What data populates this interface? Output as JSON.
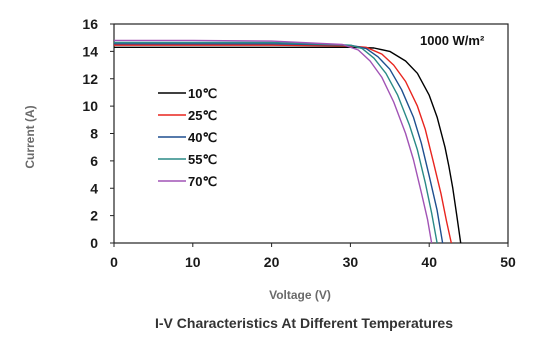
{
  "chart_data": {
    "type": "line",
    "title": "I-V Characteristics At Different Temperatures",
    "xlabel": "Voltage  (V)",
    "ylabel": "Current (A)",
    "xlim": [
      0,
      50
    ],
    "ylim": [
      0,
      16
    ],
    "xticks": [
      "0",
      "10",
      "20",
      "30",
      "40",
      "50"
    ],
    "yticks": [
      "0",
      "2",
      "4",
      "6",
      "8",
      "10",
      "12",
      "14",
      "16"
    ],
    "annotation": "1000 W/m²",
    "grid": false,
    "legend_position": "left-center",
    "series": [
      {
        "name": "10℃",
        "color": "#000000",
        "points": [
          [
            0,
            14.3
          ],
          [
            10,
            14.3
          ],
          [
            20,
            14.3
          ],
          [
            30,
            14.3
          ],
          [
            33,
            14.25
          ],
          [
            35,
            14.0
          ],
          [
            37,
            13.3
          ],
          [
            38.5,
            12.4
          ],
          [
            40,
            10.8
          ],
          [
            41,
            9.2
          ],
          [
            42,
            7.0
          ],
          [
            42.5,
            5.6
          ],
          [
            43,
            4.0
          ],
          [
            43.5,
            2.0
          ],
          [
            44,
            0
          ]
        ]
      },
      {
        "name": "25℃",
        "color": "#e8251f",
        "points": [
          [
            0,
            14.45
          ],
          [
            10,
            14.45
          ],
          [
            20,
            14.45
          ],
          [
            30,
            14.4
          ],
          [
            32,
            14.3
          ],
          [
            34,
            13.8
          ],
          [
            35.5,
            13.0
          ],
          [
            37,
            11.8
          ],
          [
            38.5,
            10.0
          ],
          [
            39.5,
            8.3
          ],
          [
            40.5,
            6.0
          ],
          [
            41.5,
            3.6
          ],
          [
            42.2,
            1.6
          ],
          [
            42.8,
            0
          ]
        ]
      },
      {
        "name": "40℃",
        "color": "#1f4f8f",
        "points": [
          [
            0,
            14.55
          ],
          [
            10,
            14.55
          ],
          [
            20,
            14.55
          ],
          [
            30,
            14.45
          ],
          [
            32,
            14.2
          ],
          [
            33.5,
            13.6
          ],
          [
            35,
            12.7
          ],
          [
            36.5,
            11.2
          ],
          [
            38,
            9.2
          ],
          [
            39,
            7.3
          ],
          [
            40,
            4.9
          ],
          [
            41,
            2.4
          ],
          [
            41.7,
            0
          ]
        ]
      },
      {
        "name": "55℃",
        "color": "#2a8a86",
        "points": [
          [
            0,
            14.65
          ],
          [
            10,
            14.65
          ],
          [
            20,
            14.65
          ],
          [
            30,
            14.45
          ],
          [
            31.5,
            14.2
          ],
          [
            33,
            13.5
          ],
          [
            34.5,
            12.4
          ],
          [
            36,
            10.8
          ],
          [
            37.5,
            8.6
          ],
          [
            38.5,
            6.8
          ],
          [
            39.5,
            4.4
          ],
          [
            40.3,
            2.2
          ],
          [
            41,
            0
          ]
        ]
      },
      {
        "name": "70℃",
        "color": "#a153b5",
        "points": [
          [
            0,
            14.8
          ],
          [
            10,
            14.8
          ],
          [
            20,
            14.75
          ],
          [
            29,
            14.5
          ],
          [
            31,
            14.1
          ],
          [
            32.5,
            13.3
          ],
          [
            34,
            12.1
          ],
          [
            35.5,
            10.3
          ],
          [
            37,
            8.0
          ],
          [
            38,
            6.1
          ],
          [
            39,
            3.7
          ],
          [
            39.8,
            1.7
          ],
          [
            40.3,
            0
          ]
        ]
      }
    ]
  }
}
